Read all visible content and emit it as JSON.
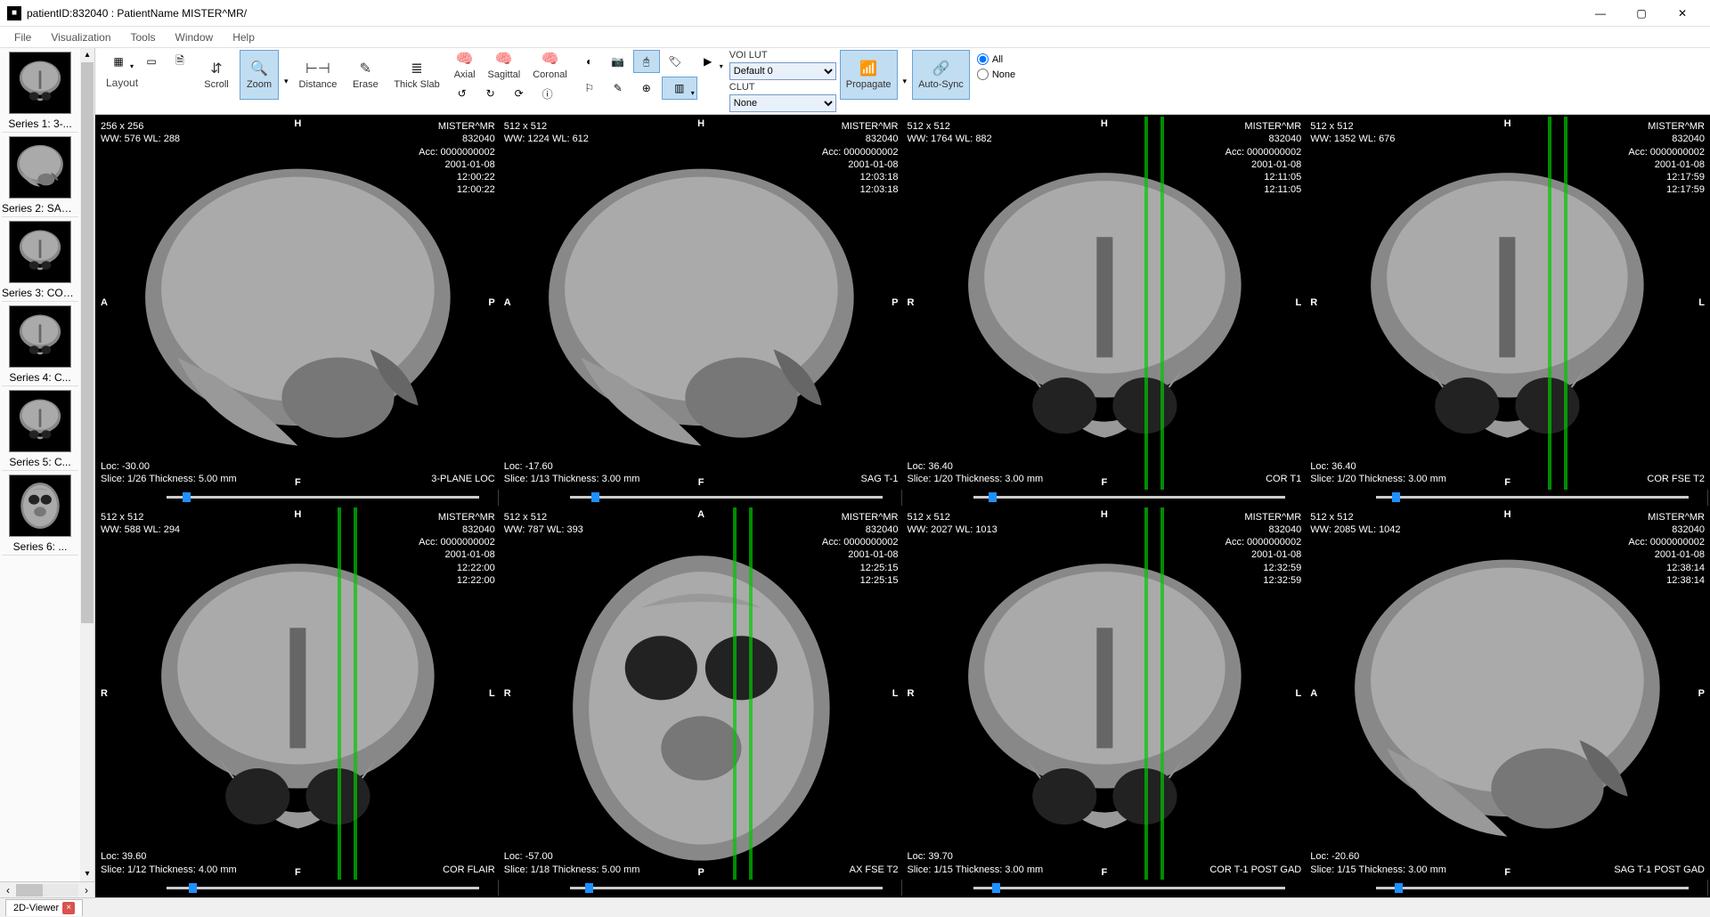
{
  "window": {
    "title": "patientID:832040 : PatientName MISTER^MR/"
  },
  "menu": [
    "File",
    "Visualization",
    "Tools",
    "Window",
    "Help"
  ],
  "toolbar": {
    "layout_label": "Layout",
    "scroll": "Scroll",
    "zoom": "Zoom",
    "distance": "Distance",
    "erase": "Erase",
    "thickslab": "Thick Slab",
    "axial": "Axial",
    "sagittal": "Sagittal",
    "coronal": "Coronal",
    "voilut_label": "VOI LUT",
    "voilut_value": "Default 0",
    "clut_label": "CLUT",
    "clut_value": "None",
    "propagate": "Propagate",
    "autosync": "Auto-Sync",
    "radio_all": "All",
    "radio_none": "None"
  },
  "sidebar": {
    "series": [
      {
        "label": "Series 1: 3-..."
      },
      {
        "label": "Series 2: SAG..."
      },
      {
        "label": "Series 3: COR..."
      },
      {
        "label": "Series 4: C..."
      },
      {
        "label": "Series 5: C..."
      },
      {
        "label": "Series 6: ..."
      }
    ]
  },
  "viewports": [
    {
      "dim": "256 x 256",
      "ww": "WW: 576 WL: 288",
      "patient": "MISTER^MR",
      "pid": "832040",
      "acc": "Acc: 0000000002",
      "date": "2001-01-08",
      "time1": "12:00:22",
      "time2": "12:00:22",
      "loc": "Loc: -30.00",
      "slice": "Slice: 1/26 Thickness: 5.00 mm",
      "seq": "3-PLANE LOC",
      "o_t": "H",
      "o_b": "F",
      "o_l": "A",
      "o_r": "P",
      "slider_name": "SAGITTAL",
      "thumb_pct": 5,
      "crosslines": [],
      "shape": "sag"
    },
    {
      "dim": "512 x 512",
      "ww": "WW: 1224 WL: 612",
      "patient": "MISTER^MR",
      "pid": "832040",
      "acc": "Acc: 0000000002",
      "date": "2001-01-08",
      "time1": "12:03:18",
      "time2": "12:03:18",
      "loc": "Loc: -17.60",
      "slice": "Slice: 1/13 Thickness: 3.00 mm",
      "seq": "SAG T-1",
      "o_t": "H",
      "o_b": "F",
      "o_l": "A",
      "o_r": "P",
      "slider_name": "SAGITTAL",
      "thumb_pct": 7,
      "crosslines": [],
      "shape": "sag"
    },
    {
      "dim": "512 x 512",
      "ww": "WW: 1764 WL: 882",
      "patient": "MISTER^MR",
      "pid": "832040",
      "acc": "Acc: 0000000002",
      "date": "2001-01-08",
      "time1": "12:11:05",
      "time2": "12:11:05",
      "loc": "Loc: 36.40",
      "slice": "Slice: 1/20 Thickness: 3.00 mm",
      "seq": "COR T1",
      "o_t": "H",
      "o_b": "F",
      "o_l": "R",
      "o_r": "L",
      "slider_name": "CORONAL",
      "thumb_pct": 5,
      "crosslines": [
        60,
        64
      ],
      "shape": "cor"
    },
    {
      "dim": "512 x 512",
      "ww": "WW: 1352 WL: 676",
      "patient": "MISTER^MR",
      "pid": "832040",
      "acc": "Acc: 0000000002",
      "date": "2001-01-08",
      "time1": "12:17:59",
      "time2": "12:17:59",
      "loc": "Loc: 36.40",
      "slice": "Slice: 1/20 Thickness: 3.00 mm",
      "seq": "COR FSE T2",
      "o_t": "H",
      "o_b": "F",
      "o_l": "R",
      "o_r": "L",
      "slider_name": "CORONAL",
      "thumb_pct": 5,
      "crosslines": [
        60,
        64
      ],
      "shape": "cor"
    },
    {
      "dim": "512 x 512",
      "ww": "WW: 588 WL: 294",
      "patient": "MISTER^MR",
      "pid": "832040",
      "acc": "Acc: 0000000002",
      "date": "2001-01-08",
      "time1": "12:22:00",
      "time2": "12:22:00",
      "loc": "Loc: 39.60",
      "slice": "Slice: 1/12 Thickness: 4.00 mm",
      "seq": "COR FLAIR",
      "o_t": "H",
      "o_b": "F",
      "o_l": "R",
      "o_r": "L",
      "slider_name": "CORONAL",
      "thumb_pct": 7,
      "crosslines": [
        60,
        64
      ],
      "shape": "cor"
    },
    {
      "dim": "512 x 512",
      "ww": "WW: 787 WL: 393",
      "patient": "MISTER^MR",
      "pid": "832040",
      "acc": "Acc: 0000000002",
      "date": "2001-01-08",
      "time1": "12:25:15",
      "time2": "12:25:15",
      "loc": "Loc: -57.00",
      "slice": "Slice: 1/18 Thickness: 5.00 mm",
      "seq": "AX FSE T2",
      "o_t": "A",
      "o_b": "P",
      "o_l": "R",
      "o_r": "L",
      "slider_name": "AXIAL",
      "thumb_pct": 5,
      "crosslines": [
        58,
        62
      ],
      "shape": "ax"
    },
    {
      "dim": "512 x 512",
      "ww": "WW: 2027 WL: 1013",
      "patient": "MISTER^MR",
      "pid": "832040",
      "acc": "Acc: 0000000002",
      "date": "2001-01-08",
      "time1": "12:32:59",
      "time2": "12:32:59",
      "loc": "Loc: 39.70",
      "slice": "Slice: 1/15 Thickness: 3.00 mm",
      "seq": "COR T-1 POST GAD",
      "o_t": "H",
      "o_b": "F",
      "o_l": "R",
      "o_r": "L",
      "slider_name": "CORONAL",
      "thumb_pct": 6,
      "crosslines": [
        60,
        64
      ],
      "shape": "cor"
    },
    {
      "dim": "512 x 512",
      "ww": "WW: 2085 WL: 1042",
      "patient": "MISTER^MR",
      "pid": "832040",
      "acc": "Acc: 0000000002",
      "date": "2001-01-08",
      "time1": "12:38:14",
      "time2": "12:38:14",
      "loc": "Loc: -20.60",
      "slice": "Slice: 1/15 Thickness: 3.00 mm",
      "seq": "SAG T-1 POST GAD",
      "o_t": "H",
      "o_b": "F",
      "o_l": "A",
      "o_r": "P",
      "slider_name": "SAGITTAL",
      "thumb_pct": 6,
      "crosslines": [],
      "shape": "sag"
    }
  ],
  "bottom": {
    "tab": "2D-Viewer"
  },
  "colors": {
    "selected_bg": "#c1ddf2",
    "selected_border": "#6aa2d6",
    "crossline": "#00c800"
  }
}
